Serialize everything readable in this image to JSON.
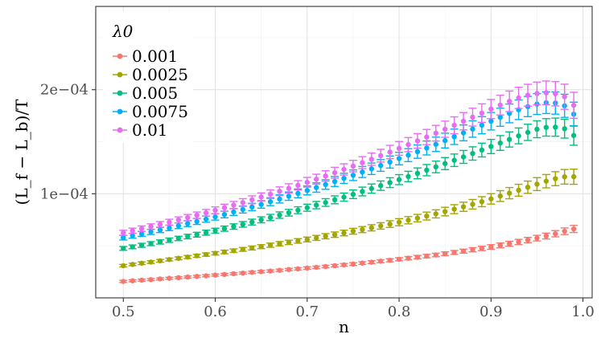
{
  "chart_data": {
    "type": "scatter",
    "title": "",
    "xlabel": "n",
    "ylabel": "(L_f − L_b)/T",
    "xlim": [
      0.47,
      1.01
    ],
    "ylim": [
      0.0,
      0.00028
    ],
    "x_ticks": [
      {
        "value": 0.5,
        "label": "0.5"
      },
      {
        "value": 0.6,
        "label": "0.6"
      },
      {
        "value": 0.7,
        "label": "0.7"
      },
      {
        "value": 0.8,
        "label": "0.8"
      },
      {
        "value": 0.9,
        "label": "0.9"
      },
      {
        "value": 1.0,
        "label": "1.0"
      }
    ],
    "y_ticks": [
      {
        "value": 0.0001,
        "label": "1e−04"
      },
      {
        "value": 0.0002,
        "label": "2e−04"
      }
    ],
    "grid": true,
    "legend": {
      "title": "λ0",
      "position": "top-left"
    },
    "x": [
      0.5,
      0.51,
      0.52,
      0.53,
      0.54,
      0.55,
      0.56,
      0.57,
      0.58,
      0.59,
      0.6,
      0.61,
      0.62,
      0.63,
      0.64,
      0.65,
      0.66,
      0.67,
      0.68,
      0.69,
      0.7,
      0.71,
      0.72,
      0.73,
      0.74,
      0.75,
      0.76,
      0.77,
      0.78,
      0.79,
      0.8,
      0.81,
      0.82,
      0.83,
      0.84,
      0.85,
      0.86,
      0.87,
      0.88,
      0.89,
      0.9,
      0.91,
      0.92,
      0.93,
      0.94,
      0.95,
      0.96,
      0.97,
      0.98,
      0.99
    ],
    "series": [
      {
        "name": "0.001",
        "color": "#F8766D",
        "values": [
          1.58e-05,
          1.64e-05,
          1.7e-05,
          1.75e-05,
          1.82e-05,
          1.88e-05,
          1.94e-05,
          2e-05,
          2.06e-05,
          2.12e-05,
          2.19e-05,
          2.25e-05,
          2.32e-05,
          2.38e-05,
          2.45e-05,
          2.52e-05,
          2.58e-05,
          2.65e-05,
          2.72e-05,
          2.79e-05,
          2.86e-05,
          2.93e-05,
          3.01e-05,
          3.09e-05,
          3.17e-05,
          3.25e-05,
          3.34e-05,
          3.43e-05,
          3.52e-05,
          3.61e-05,
          3.71e-05,
          3.81e-05,
          3.91e-05,
          4.01e-05,
          4.12e-05,
          4.24e-05,
          4.36e-05,
          4.49e-05,
          4.62e-05,
          4.75e-05,
          4.89e-05,
          5.04e-05,
          5.2e-05,
          5.37e-05,
          5.55e-05,
          5.74e-05,
          5.94e-05,
          6.16e-05,
          6.4e-05,
          6.62e-05
        ],
        "errors": [
          1e-06,
          1e-06,
          1e-06,
          1e-06,
          1e-06,
          1e-06,
          1e-06,
          1e-06,
          1e-06,
          1e-06,
          1e-06,
          1e-06,
          1e-06,
          1e-06,
          1.1e-06,
          1.1e-06,
          1.1e-06,
          1.1e-06,
          1.1e-06,
          1.1e-06,
          1.2e-06,
          1.2e-06,
          1.2e-06,
          1.2e-06,
          1.3e-06,
          1.3e-06,
          1.3e-06,
          1.4e-06,
          1.4e-06,
          1.5e-06,
          1.5e-06,
          1.6e-06,
          1.6e-06,
          1.7e-06,
          1.7e-06,
          1.8e-06,
          1.9e-06,
          1.9e-06,
          2e-06,
          2.1e-06,
          2.2e-06,
          2.3e-06,
          2.4e-06,
          2.5e-06,
          2.6e-06,
          2.7e-06,
          2.8e-06,
          3e-06,
          3.2e-06,
          3.4e-06
        ]
      },
      {
        "name": "0.0025",
        "color": "#A3A500",
        "values": [
          3.09e-05,
          3.21e-05,
          3.33e-05,
          3.44e-05,
          3.56e-05,
          3.68e-05,
          3.8e-05,
          3.92e-05,
          4.04e-05,
          4.16e-05,
          4.28e-05,
          4.41e-05,
          4.53e-05,
          4.66e-05,
          4.79e-05,
          4.92e-05,
          5.06e-05,
          5.2e-05,
          5.33e-05,
          5.47e-05,
          5.61e-05,
          5.76e-05,
          5.92e-05,
          6.07e-05,
          6.23e-05,
          6.4e-05,
          6.56e-05,
          6.73e-05,
          6.91e-05,
          7.09e-05,
          7.27e-05,
          7.46e-05,
          7.66e-05,
          7.86e-05,
          8.07e-05,
          8.29e-05,
          8.52e-05,
          8.75e-05,
          8.99e-05,
          9.24e-05,
          9.51e-05,
          9.78e-05,
          0.0001006,
          0.0001034,
          0.0001063,
          0.0001093,
          0.0001121,
          0.0001145,
          0.0001163,
          0.0001164
        ],
        "errors": [
          1.2e-06,
          1.2e-06,
          1.3e-06,
          1.3e-06,
          1.3e-06,
          1.4e-06,
          1.4e-06,
          1.5e-06,
          1.5e-06,
          1.6e-06,
          1.6e-06,
          1.7e-06,
          1.7e-06,
          1.8e-06,
          1.9e-06,
          1.9e-06,
          2e-06,
          2.1e-06,
          2.1e-06,
          2.2e-06,
          2.3e-06,
          2.4e-06,
          2.5e-06,
          2.6e-06,
          2.7e-06,
          2.8e-06,
          2.9e-06,
          3e-06,
          3.1e-06,
          3.2e-06,
          3.4e-06,
          3.5e-06,
          3.6e-06,
          3.8e-06,
          3.9e-06,
          4.1e-06,
          4.3e-06,
          4.4e-06,
          4.6e-06,
          4.8e-06,
          5e-06,
          5.2e-06,
          5.4e-06,
          5.7e-06,
          5.9e-06,
          6.2e-06,
          6.4e-06,
          6.7e-06,
          7e-06,
          7.3e-06
        ]
      },
      {
        "name": "0.005",
        "color": "#00BF7D",
        "values": [
          4.75e-05,
          4.9e-05,
          5.05e-05,
          5.21e-05,
          5.37e-05,
          5.54e-05,
          5.71e-05,
          5.89e-05,
          6.07e-05,
          6.26e-05,
          6.45e-05,
          6.65e-05,
          6.85e-05,
          7.06e-05,
          7.28e-05,
          7.5e-05,
          7.72e-05,
          7.95e-05,
          8.18e-05,
          8.42e-05,
          8.66e-05,
          8.91e-05,
          9.16e-05,
          9.42e-05,
          9.68e-05,
          9.95e-05,
          0.0001022,
          0.000105,
          0.0001078,
          0.0001107,
          0.0001136,
          0.0001166,
          0.0001196,
          0.0001227,
          0.0001258,
          0.000129,
          0.0001322,
          0.0001354,
          0.0001387,
          0.000142,
          0.0001454,
          0.0001488,
          0.0001522,
          0.0001556,
          0.000159,
          0.000162,
          0.0001638,
          0.000164,
          0.0001625,
          0.000156
        ],
        "errors": [
          1.8e-06,
          1.8e-06,
          1.9e-06,
          1.9e-06,
          2e-06,
          2.1e-06,
          2.1e-06,
          2.2e-06,
          2.3e-06,
          2.4e-06,
          2.4e-06,
          2.5e-06,
          2.6e-06,
          2.7e-06,
          2.8e-06,
          2.9e-06,
          3e-06,
          3.1e-06,
          3.2e-06,
          3.3e-06,
          3.4e-06,
          3.5e-06,
          3.7e-06,
          3.8e-06,
          3.9e-06,
          4.1e-06,
          4.2e-06,
          4.4e-06,
          4.5e-06,
          4.7e-06,
          4.8e-06,
          5e-06,
          5.2e-06,
          5.4e-06,
          5.6e-06,
          5.8e-06,
          6e-06,
          6.2e-06,
          6.4e-06,
          6.6e-06,
          6.8e-06,
          7.1e-06,
          7.3e-06,
          7.6e-06,
          7.8e-06,
          8.1e-06,
          8.4e-06,
          8.7e-06,
          9e-06,
          9.4e-06
        ]
      },
      {
        "name": "0.0075",
        "color": "#00B0F6",
        "values": [
          5.78e-05,
          5.96e-05,
          6.14e-05,
          6.33e-05,
          6.52e-05,
          6.72e-05,
          6.92e-05,
          7.13e-05,
          7.34e-05,
          7.56e-05,
          7.78e-05,
          8.01e-05,
          8.25e-05,
          8.49e-05,
          8.73e-05,
          8.98e-05,
          9.24e-05,
          9.5e-05,
          9.77e-05,
          0.0001004,
          0.0001032,
          0.000106,
          0.0001089,
          0.0001118,
          0.0001148,
          0.0001178,
          0.0001209,
          0.000124,
          0.0001272,
          0.0001305,
          0.0001338,
          0.0001371,
          0.0001405,
          0.000144,
          0.0001475,
          0.0001511,
          0.0001548,
          0.0001585,
          0.0001622,
          0.0001659,
          0.0001697,
          0.0001735,
          0.0001772,
          0.0001807,
          0.0001838,
          0.0001862,
          0.0001875,
          0.0001872,
          0.0001845,
          0.0001765
        ],
        "errors": [
          2.2e-06,
          2.3e-06,
          2.3e-06,
          2.4e-06,
          2.5e-06,
          2.6e-06,
          2.7e-06,
          2.8e-06,
          2.9e-06,
          3e-06,
          3.1e-06,
          3.2e-06,
          3.3e-06,
          3.4e-06,
          3.5e-06,
          3.6e-06,
          3.8e-06,
          3.9e-06,
          4e-06,
          4.2e-06,
          4.3e-06,
          4.5e-06,
          4.6e-06,
          4.8e-06,
          4.9e-06,
          5.1e-06,
          5.3e-06,
          5.5e-06,
          5.6e-06,
          5.8e-06,
          6e-06,
          6.2e-06,
          6.4e-06,
          6.7e-06,
          6.9e-06,
          7.1e-06,
          7.4e-06,
          7.6e-06,
          7.9e-06,
          8.2e-06,
          8.4e-06,
          8.7e-06,
          9e-06,
          9.4e-06,
          9.7e-06,
          1e-05,
          1.04e-05,
          1.07e-05,
          1.11e-05,
          1.15e-05
        ]
      },
      {
        "name": "0.01",
        "color": "#E76BF3",
        "values": [
          6.25e-05,
          6.45e-05,
          6.65e-05,
          6.85e-05,
          7.06e-05,
          7.27e-05,
          7.49e-05,
          7.71e-05,
          7.94e-05,
          8.17e-05,
          8.41e-05,
          8.66e-05,
          8.91e-05,
          9.16e-05,
          9.42e-05,
          9.69e-05,
          9.96e-05,
          0.0001024,
          0.0001052,
          0.0001081,
          0.000111,
          0.000114,
          0.0001171,
          0.0001202,
          0.0001234,
          0.0001266,
          0.0001299,
          0.0001332,
          0.0001366,
          0.0001401,
          0.0001436,
          0.0001472,
          0.0001508,
          0.0001545,
          0.0001582,
          0.000162,
          0.0001658,
          0.0001697,
          0.0001736,
          0.0001775,
          0.0001814,
          0.0001852,
          0.0001888,
          0.0001921,
          0.0001947,
          0.0001964,
          0.000197,
          0.0001961,
          0.0001932,
          0.000185
        ],
        "errors": [
          2.4e-06,
          2.5e-06,
          2.6e-06,
          2.6e-06,
          2.7e-06,
          2.8e-06,
          2.9e-06,
          3e-06,
          3.1e-06,
          3.2e-06,
          3.3e-06,
          3.4e-06,
          3.5e-06,
          3.7e-06,
          3.8e-06,
          3.9e-06,
          4.1e-06,
          4.2e-06,
          4.4e-06,
          4.5e-06,
          4.7e-06,
          4.8e-06,
          5e-06,
          5.2e-06,
          5.4e-06,
          5.5e-06,
          5.7e-06,
          5.9e-06,
          6.1e-06,
          6.4e-06,
          6.6e-06,
          6.8e-06,
          7e-06,
          7.3e-06,
          7.5e-06,
          7.8e-06,
          8.1e-06,
          8.3e-06,
          8.6e-06,
          8.9e-06,
          9.2e-06,
          9.5e-06,
          9.9e-06,
          1.02e-05,
          1.05e-05,
          1.09e-05,
          1.13e-05,
          1.17e-05,
          1.21e-05,
          1.25e-05
        ]
      }
    ]
  }
}
